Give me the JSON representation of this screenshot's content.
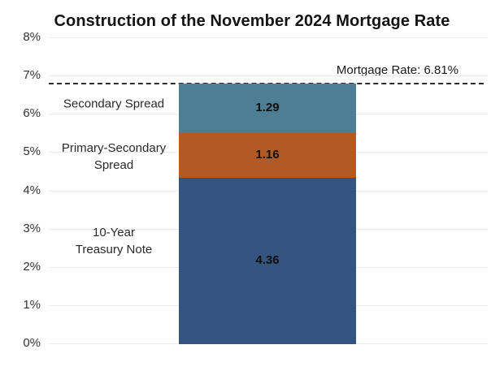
{
  "chart_data": {
    "type": "bar",
    "subtype": "stacked_single_bar",
    "title": "Construction of the November 2024 Mortgage Rate",
    "categories": [
      "November 2024 Mortgage Rate"
    ],
    "series": [
      {
        "name": "10-Year Treasury Note",
        "label": "10-Year\nTreasury Note",
        "value": 4.36,
        "value_label": "4.36",
        "color": "#335580"
      },
      {
        "name": "Primary-Secondary Spread",
        "label": "Primary-Secondary\nSpread",
        "value": 1.16,
        "value_label": "1.16",
        "color": "#B15A26"
      },
      {
        "name": "Secondary Spread",
        "label": "Secondary Spread",
        "value": 1.29,
        "value_label": "1.29",
        "color": "#4E7E93"
      }
    ],
    "total": 6.81,
    "annotation": {
      "text": "Mortgage Rate: 6.81%",
      "value": 6.81,
      "line_style": "dashed"
    },
    "y_axis": {
      "min": 0,
      "max": 8,
      "tick_step": 1,
      "tick_labels": [
        "0%",
        "1%",
        "2%",
        "3%",
        "4%",
        "5%",
        "6%",
        "7%",
        "8%"
      ]
    },
    "xlabel": "",
    "ylabel": "",
    "grid": true,
    "legend": "none",
    "colors": {
      "background": "#ffffff",
      "gridline": "#eaeaea",
      "dashed_line": "#2d2d2d",
      "title_text": "#141414",
      "tick_text": "#333333"
    }
  }
}
